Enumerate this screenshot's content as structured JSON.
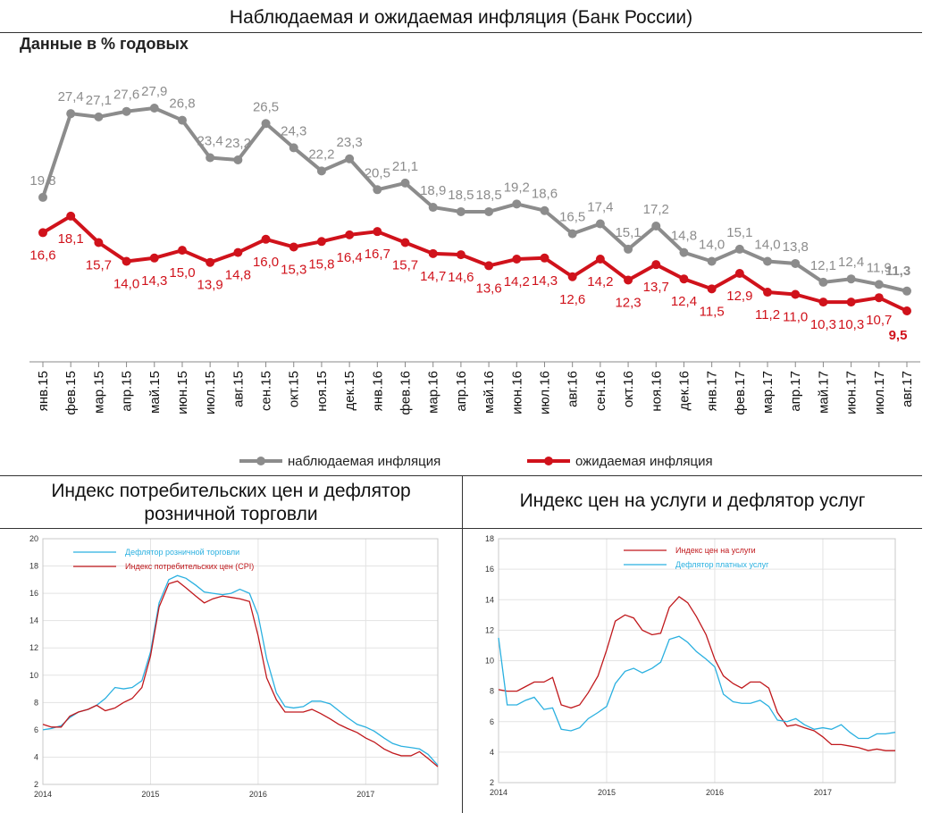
{
  "layout": {
    "top_title": "Наблюдаемая и ожидаемая инфляция (Банк России)",
    "bottom_left_title": [
      "Индекс потребительских цен и дефлятор",
      "розничной торговли"
    ],
    "bottom_right_title": "Индекс цен на услуги и дефлятор услуг"
  },
  "chart_data": [
    {
      "id": "main",
      "type": "line",
      "title": "",
      "subtitle": "Данные в % годовых",
      "categories": [
        "янв.15",
        "фев.15",
        "мар.15",
        "апр.15",
        "май.15",
        "июн.15",
        "июл.15",
        "авг.15",
        "сен.15",
        "окт.15",
        "ноя.15",
        "дек.15",
        "янв.16",
        "фев.16",
        "мар.16",
        "апр.16",
        "май.16",
        "июн.16",
        "июл.16",
        "авг.16",
        "сен.16",
        "окт.16",
        "ноя.16",
        "дек.16",
        "янв.17",
        "фев.17",
        "мар.17",
        "апр.17",
        "май.17",
        "июн.17",
        "июл.17",
        "авг.17"
      ],
      "series": [
        {
          "name": "наблюдаемая инфляция",
          "color": "#8c8c8c",
          "values": [
            19.8,
            27.4,
            27.1,
            27.6,
            27.9,
            26.8,
            23.4,
            23.2,
            26.5,
            24.3,
            22.2,
            23.3,
            20.5,
            21.1,
            18.9,
            18.5,
            18.5,
            19.2,
            18.6,
            16.5,
            17.4,
            15.1,
            17.2,
            14.8,
            14.0,
            15.1,
            14.0,
            13.8,
            12.1,
            12.4,
            11.9,
            11.3
          ],
          "labels": [
            "19,8",
            "27,4",
            "27,1",
            "27,6",
            "27,9",
            "26,8",
            "23,4",
            "23,2",
            "26,5",
            "24,3",
            "22,2",
            "23,3",
            "20,5",
            "21,1",
            "18,9",
            "18,5",
            "18,5",
            "19,2",
            "18,6",
            "16,5",
            "17,4",
            "15,1",
            "17,2",
            "14,8",
            "14,0",
            "15,1",
            "14,0",
            "13,8",
            "12,1",
            "12,4",
            "11,9",
            "11,3"
          ]
        },
        {
          "name": "ожидаемая инфляция",
          "color": "#d0121b",
          "values": [
            16.6,
            18.1,
            15.7,
            14.0,
            14.3,
            15.0,
            13.9,
            14.8,
            16.0,
            15.3,
            15.8,
            16.4,
            16.7,
            15.7,
            14.7,
            14.6,
            13.6,
            14.2,
            14.3,
            12.6,
            14.2,
            12.3,
            13.7,
            12.4,
            11.5,
            12.9,
            11.2,
            11.0,
            10.3,
            10.3,
            10.7,
            9.5
          ],
          "labels": [
            "16,6",
            "18,1",
            "15,7",
            "14,0",
            "14,3",
            "15,0",
            "13,9",
            "14,8",
            "16,0",
            "15,3",
            "15,8",
            "16,4",
            "16,7",
            "15,7",
            "14,7",
            "14,6",
            "13,6",
            "14,2",
            "14,3",
            "12,6",
            "14,2",
            "12,3",
            "13,7",
            "12,4",
            "11,5",
            "12,9",
            "11,2",
            "11,0",
            "10,3",
            "10,3",
            "10,7",
            "9,5"
          ]
        }
      ],
      "legend_position": "bottom",
      "grid": false
    },
    {
      "id": "cpi",
      "type": "line",
      "x_ticks": [
        "2014",
        "2015",
        "2016",
        "2017"
      ],
      "y_ticks": [
        "2",
        "4",
        "6",
        "8",
        "10",
        "12",
        "14",
        "16",
        "18",
        "20"
      ],
      "ylim": [
        2,
        20
      ],
      "xlim": [
        2014.0,
        2017.67
      ],
      "grid": true,
      "legend_position": "top-left",
      "series": [
        {
          "name": "Дефлятор розничной торговли",
          "color": "#2ab0e0",
          "x": [
            2014.0,
            2014.08,
            2014.17,
            2014.25,
            2014.33,
            2014.42,
            2014.5,
            2014.58,
            2014.67,
            2014.75,
            2014.83,
            2014.92,
            2015.0,
            2015.08,
            2015.17,
            2015.25,
            2015.33,
            2015.42,
            2015.5,
            2015.58,
            2015.67,
            2015.75,
            2015.83,
            2015.92,
            2016.0,
            2016.08,
            2016.17,
            2016.25,
            2016.33,
            2016.42,
            2016.5,
            2016.58,
            2016.67,
            2016.75,
            2016.83,
            2016.92,
            2017.0,
            2017.08,
            2017.17,
            2017.25,
            2017.33,
            2017.42,
            2017.5,
            2017.58,
            2017.67
          ],
          "values": [
            6.0,
            6.1,
            6.3,
            6.9,
            7.3,
            7.5,
            7.8,
            8.3,
            9.1,
            9.0,
            9.1,
            9.6,
            11.7,
            15.3,
            17.0,
            17.3,
            17.1,
            16.6,
            16.1,
            16.0,
            15.9,
            16.0,
            16.3,
            16.0,
            14.4,
            11.2,
            8.7,
            7.7,
            7.6,
            7.7,
            8.1,
            8.1,
            7.9,
            7.4,
            6.9,
            6.4,
            6.2,
            5.9,
            5.4,
            5.0,
            4.8,
            4.7,
            4.6,
            4.2,
            3.4
          ]
        },
        {
          "name": "Индекс потребительских цен (CPI)",
          "color": "#c0181c",
          "x": [
            2014.0,
            2014.08,
            2014.17,
            2014.25,
            2014.33,
            2014.42,
            2014.5,
            2014.58,
            2014.67,
            2014.75,
            2014.83,
            2014.92,
            2015.0,
            2015.08,
            2015.17,
            2015.25,
            2015.33,
            2015.42,
            2015.5,
            2015.58,
            2015.67,
            2015.75,
            2015.83,
            2015.92,
            2016.0,
            2016.08,
            2016.17,
            2016.25,
            2016.33,
            2016.42,
            2016.5,
            2016.58,
            2016.67,
            2016.75,
            2016.83,
            2016.92,
            2017.0,
            2017.08,
            2017.17,
            2017.25,
            2017.33,
            2017.42,
            2017.5,
            2017.58,
            2017.67
          ],
          "values": [
            6.4,
            6.2,
            6.2,
            7.0,
            7.3,
            7.5,
            7.8,
            7.4,
            7.6,
            8.0,
            8.3,
            9.1,
            11.4,
            15.0,
            16.7,
            16.9,
            16.4,
            15.8,
            15.3,
            15.6,
            15.8,
            15.7,
            15.6,
            15.4,
            12.9,
            9.8,
            8.2,
            7.3,
            7.3,
            7.3,
            7.5,
            7.2,
            6.8,
            6.4,
            6.1,
            5.8,
            5.4,
            5.1,
            4.6,
            4.3,
            4.1,
            4.1,
            4.4,
            3.9,
            3.3
          ]
        }
      ]
    },
    {
      "id": "services",
      "type": "line",
      "x_ticks": [
        "2014",
        "2015",
        "2016",
        "2017"
      ],
      "y_ticks": [
        "2",
        "4",
        "6",
        "8",
        "10",
        "12",
        "14",
        "16",
        "18"
      ],
      "ylim": [
        2,
        18
      ],
      "xlim": [
        2014.0,
        2017.67
      ],
      "grid": true,
      "legend_position": "top-center",
      "series": [
        {
          "name": "Индекс цен на услуги",
          "color": "#c0181c",
          "x": [
            2014.0,
            2014.08,
            2014.17,
            2014.25,
            2014.33,
            2014.42,
            2014.5,
            2014.58,
            2014.67,
            2014.75,
            2014.83,
            2014.92,
            2015.0,
            2015.08,
            2015.17,
            2015.25,
            2015.33,
            2015.42,
            2015.5,
            2015.58,
            2015.67,
            2015.75,
            2015.83,
            2015.92,
            2016.0,
            2016.08,
            2016.17,
            2016.25,
            2016.33,
            2016.42,
            2016.5,
            2016.58,
            2016.67,
            2016.75,
            2016.83,
            2016.92,
            2017.0,
            2017.08,
            2017.17,
            2017.25,
            2017.33,
            2017.42,
            2017.5,
            2017.58,
            2017.67
          ],
          "values": [
            8.1,
            8.0,
            8.0,
            8.3,
            8.6,
            8.6,
            8.9,
            7.1,
            6.9,
            7.1,
            7.9,
            9.0,
            10.7,
            12.6,
            13.0,
            12.8,
            12.0,
            11.7,
            11.8,
            13.5,
            14.2,
            13.8,
            12.9,
            11.7,
            10.1,
            9.0,
            8.5,
            8.2,
            8.6,
            8.6,
            8.2,
            6.6,
            5.7,
            5.8,
            5.6,
            5.4,
            5.0,
            4.5,
            4.5,
            4.4,
            4.3,
            4.1,
            4.2,
            4.1,
            4.1
          ]
        },
        {
          "name": "Дефлятор платных услуг",
          "color": "#2ab0e0",
          "x": [
            2014.0,
            2014.08,
            2014.17,
            2014.25,
            2014.33,
            2014.42,
            2014.5,
            2014.58,
            2014.67,
            2014.75,
            2014.83,
            2014.92,
            2015.0,
            2015.08,
            2015.17,
            2015.25,
            2015.33,
            2015.42,
            2015.5,
            2015.58,
            2015.67,
            2015.75,
            2015.83,
            2015.92,
            2016.0,
            2016.08,
            2016.17,
            2016.25,
            2016.33,
            2016.42,
            2016.5,
            2016.58,
            2016.67,
            2016.75,
            2016.83,
            2016.92,
            2017.0,
            2017.08,
            2017.17,
            2017.25,
            2017.33,
            2017.42,
            2017.5,
            2017.58,
            2017.67
          ],
          "values": [
            11.5,
            7.1,
            7.1,
            7.4,
            7.6,
            6.8,
            6.9,
            5.5,
            5.4,
            5.6,
            6.2,
            6.6,
            7.0,
            8.5,
            9.3,
            9.5,
            9.2,
            9.5,
            9.9,
            11.4,
            11.6,
            11.2,
            10.6,
            10.1,
            9.6,
            7.8,
            7.3,
            7.2,
            7.2,
            7.4,
            7.0,
            6.1,
            6.0,
            6.2,
            5.8,
            5.5,
            5.6,
            5.5,
            5.8,
            5.3,
            4.9,
            4.9,
            5.2,
            5.2,
            5.3
          ]
        }
      ]
    }
  ]
}
